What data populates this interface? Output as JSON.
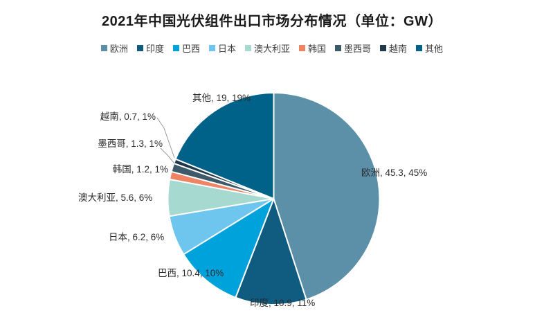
{
  "title": "2021年中国光伏组件出口市场分布情况（单位：GW）",
  "chart_data": {
    "type": "pie",
    "title": "2021年中国光伏组件出口市场分布情况（单位：GW）",
    "unit": "GW",
    "legend_position": "top",
    "start_angle_deg": 0,
    "direction": "clockwise",
    "grid": false,
    "series": [
      {
        "name": "欧洲",
        "value": 45.3,
        "pct_label": "45%",
        "label": "欧洲, 45.3, 45%",
        "color": "#5C90A8"
      },
      {
        "name": "印度",
        "value": 10.9,
        "pct_label": "11%",
        "label": "印度, 10.9, 11%",
        "color": "#0F5C80"
      },
      {
        "name": "巴西",
        "value": 10.4,
        "pct_label": "10%",
        "label": "巴西, 10.4, 10%",
        "color": "#00A2DC"
      },
      {
        "name": "日本",
        "value": 6.2,
        "pct_label": "6%",
        "label": "日本, 6.2, 6%",
        "color": "#6EC6EF"
      },
      {
        "name": "澳大利亚",
        "value": 5.6,
        "pct_label": "6%",
        "label": "澳大利亚, 5.6, 6%",
        "color": "#A6D9D0"
      },
      {
        "name": "韩国",
        "value": 1.2,
        "pct_label": "1%",
        "label": "韩国, 1.2, 1%",
        "color": "#EF8465"
      },
      {
        "name": "墨西哥",
        "value": 1.3,
        "pct_label": "1%",
        "label": "墨西哥, 1.3, 1%",
        "color": "#3D5A6B"
      },
      {
        "name": "越南",
        "value": 0.7,
        "pct_label": "1%",
        "label": "越南, 0.7, 1%",
        "color": "#20394A"
      },
      {
        "name": "其他",
        "value": 19,
        "pct_label": "19%",
        "label": "其他, 19, 19%",
        "color": "#016289"
      }
    ],
    "leader_line_color": "#999999",
    "slice_border_color": "#FFFFFF"
  }
}
